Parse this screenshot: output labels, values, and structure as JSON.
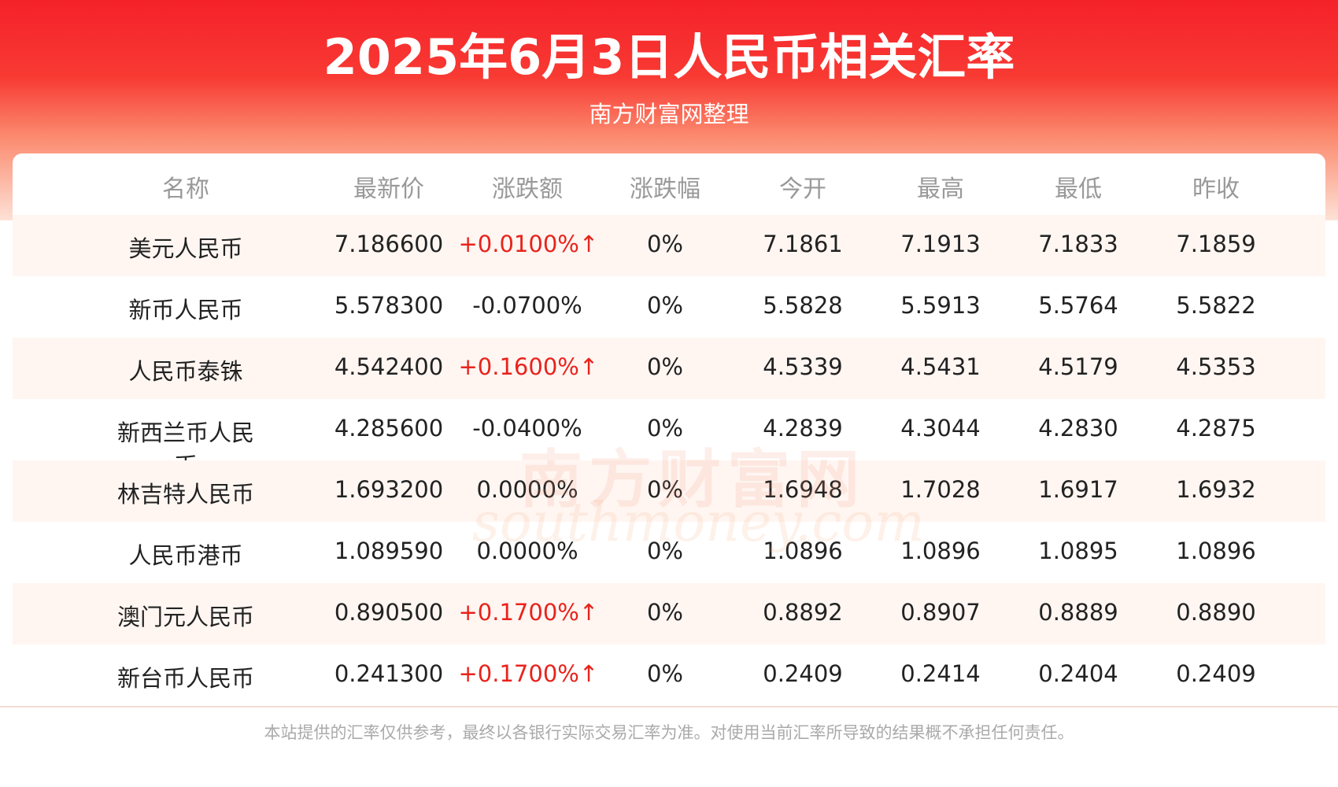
{
  "header": {
    "title": "2025年6月3日人民币相关汇率",
    "subtitle": "南方财富网整理"
  },
  "table": {
    "columns": [
      "名称",
      "最新价",
      "涨跌额",
      "涨跌幅",
      "今开",
      "最高",
      "最低",
      "昨收"
    ],
    "rows": [
      [
        "美元人民币",
        "7.186600",
        "+0.0100%↑",
        "0%",
        "7.1861",
        "7.1913",
        "7.1833",
        "7.1859"
      ],
      [
        "新币人民币",
        "5.578300",
        "-0.0700%",
        "0%",
        "5.5828",
        "5.5913",
        "5.5764",
        "5.5822"
      ],
      [
        "人民币泰铢",
        "4.542400",
        "+0.1600%↑",
        "0%",
        "4.5339",
        "4.5431",
        "4.5179",
        "4.5353"
      ],
      [
        "新西兰币人民币",
        "4.285600",
        "-0.0400%",
        "0%",
        "4.2839",
        "4.3044",
        "4.2830",
        "4.2875"
      ],
      [
        "林吉特人民币",
        "1.693200",
        "0.0000%",
        "0%",
        "1.6948",
        "1.7028",
        "1.6917",
        "1.6932"
      ],
      [
        "人民币港币",
        "1.089590",
        "0.0000%",
        "0%",
        "1.0896",
        "1.0896",
        "1.0895",
        "1.0896"
      ],
      [
        "澳门元人民币",
        "0.890500",
        "+0.1700%↑",
        "0%",
        "0.8892",
        "0.8907",
        "0.8889",
        "0.8890"
      ],
      [
        "新台币人民币",
        "0.241300",
        "+0.1700%↑",
        "0%",
        "0.2409",
        "0.2414",
        "0.2404",
        "0.2409"
      ]
    ]
  },
  "watermark": {
    "name": "南方财富网",
    "site": "southmoney.com"
  },
  "footer": "本站提供的汇率仅供参考，最终以各银行实际交易汇率为准。对使用当前汇率所导致的结果概不承担任何责任。"
}
